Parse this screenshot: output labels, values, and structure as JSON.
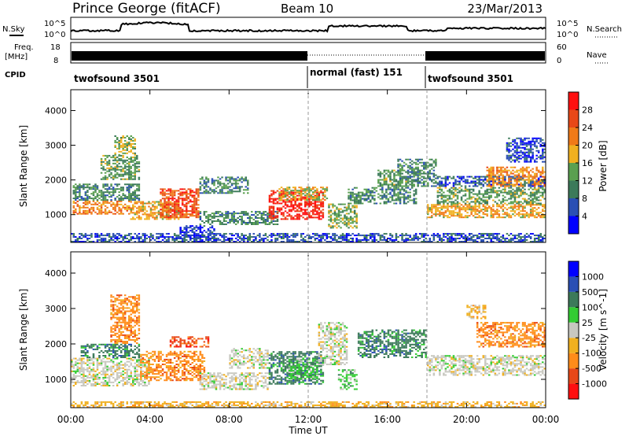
{
  "header": {
    "station": "Prince George (fitACF)",
    "beam": "Beam 10",
    "date": "23/Mar/2013"
  },
  "top_panels": {
    "nsky_label": "N.Sky",
    "nsearch_label": "N.Search",
    "nsky_ticks": [
      "10^5",
      "10^0"
    ],
    "nsearch_ticks": [
      "10^5",
      "10^0"
    ],
    "freq_label_line1": "Freq.",
    "freq_label_line2": "[MHz]",
    "freq_ticks": [
      "18",
      "8"
    ],
    "nave_label": "Nave",
    "nave_ticks": [
      "60",
      "0"
    ],
    "cpid_label": "CPID",
    "cpid_segments": [
      {
        "label": "twofsound 3501",
        "start_hour": 0
      },
      {
        "label": "normal (fast) 151",
        "start_hour": 12
      },
      {
        "label": "twofsound 3501",
        "start_hour": 18
      }
    ]
  },
  "colors": {
    "power": [
      "#0000ff",
      "#2a4fb4",
      "#3c7a5a",
      "#5aa050",
      "#f0b020",
      "#f07a18",
      "#e84818",
      "#ff1010"
    ],
    "velocity": [
      "#ff1010",
      "#e84818",
      "#ff8c1a",
      "#f0b020",
      "#c8c8c0",
      "#33cc33",
      "#3c7a5a",
      "#2a4fb4",
      "#0000ff"
    ],
    "ground": "#c8c8c0"
  },
  "chart_data": [
    {
      "type": "heatmap",
      "name": "power",
      "ylabel": "Slant Range [km]",
      "xlim": [
        0,
        24
      ],
      "ylim": [
        200,
        4600
      ],
      "y_ticks": [
        "1000",
        "2000",
        "3000",
        "4000"
      ],
      "x_ticks": [
        "00:00",
        "04:00",
        "08:00",
        "12:00",
        "16:00",
        "20:00",
        "00:00"
      ],
      "colorbar": {
        "label": "Power [dB]",
        "ticks": [
          "4",
          "8",
          "12",
          "16",
          "20",
          "24",
          "28"
        ],
        "range": [
          0,
          30
        ]
      },
      "regions": [
        {
          "t": [
            0.1,
            3.0
          ],
          "r": [
            1000,
            1400
          ],
          "v": 20
        },
        {
          "t": [
            0.1,
            3.5
          ],
          "r": [
            1400,
            1900
          ],
          "v": 10
        },
        {
          "t": [
            1.5,
            3.5
          ],
          "r": [
            2000,
            2700
          ],
          "v": 12
        },
        {
          "t": [
            2.2,
            3.3
          ],
          "r": [
            2700,
            3300
          ],
          "v": 14
        },
        {
          "t": [
            3.0,
            5.5
          ],
          "r": [
            850,
            1400
          ],
          "v": 18
        },
        {
          "t": [
            4.5,
            6.5
          ],
          "r": [
            900,
            1750
          ],
          "v": 24
        },
        {
          "t": [
            5.5,
            7.3
          ],
          "r": [
            200,
            700
          ],
          "v": 4
        },
        {
          "t": [
            6.5,
            10.5
          ],
          "r": [
            700,
            1100
          ],
          "v": 10
        },
        {
          "t": [
            6.5,
            9.0
          ],
          "r": [
            1600,
            2100
          ],
          "v": 10
        },
        {
          "t": [
            10.0,
            12.8
          ],
          "r": [
            850,
            1700
          ],
          "v": 27
        },
        {
          "t": [
            10.5,
            13.0
          ],
          "r": [
            1400,
            1800
          ],
          "v": 16
        },
        {
          "t": [
            13.0,
            14.5
          ],
          "r": [
            600,
            1300
          ],
          "v": 14
        },
        {
          "t": [
            14.0,
            17.5
          ],
          "r": [
            1300,
            1800
          ],
          "v": 10
        },
        {
          "t": [
            15.5,
            17.5
          ],
          "r": [
            1800,
            2300
          ],
          "v": 12
        },
        {
          "t": [
            16.5,
            18.5
          ],
          "r": [
            1800,
            2600
          ],
          "v": 10
        },
        {
          "t": [
            18.0,
            24.0
          ],
          "r": [
            900,
            1300
          ],
          "v": 18
        },
        {
          "t": [
            18.5,
            24.0
          ],
          "r": [
            1300,
            1800
          ],
          "v": 12
        },
        {
          "t": [
            18.5,
            24.0
          ],
          "r": [
            1800,
            2100
          ],
          "v": 6
        },
        {
          "t": [
            21.0,
            24.0
          ],
          "r": [
            1800,
            2400
          ],
          "v": 20
        },
        {
          "t": [
            22.0,
            24.0
          ],
          "r": [
            2500,
            3200
          ],
          "v": 5
        },
        {
          "t": [
            0.0,
            24.0
          ],
          "r": [
            200,
            450
          ],
          "v": 6
        }
      ]
    },
    {
      "type": "heatmap",
      "name": "velocity",
      "ylabel": "Slant Range [km]",
      "xlabel": "Time UT",
      "xlim": [
        0,
        24
      ],
      "ylim": [
        200,
        4600
      ],
      "y_ticks": [
        "1000",
        "2000",
        "3000",
        "4000"
      ],
      "x_ticks": [
        "00:00",
        "04:00",
        "08:00",
        "12:00",
        "16:00",
        "20:00",
        "00:00"
      ],
      "colorbar": {
        "label": "Velocity [m s^-1]",
        "ticks": [
          "1000",
          "500",
          "100",
          "25",
          "-25",
          "-100",
          "-500",
          "-1000"
        ]
      },
      "regions": [
        {
          "t": [
            0.0,
            4.0
          ],
          "r": [
            800,
            1600
          ],
          "c": 4
        },
        {
          "t": [
            0.5,
            3.5
          ],
          "r": [
            1600,
            2000
          ],
          "c": 6
        },
        {
          "t": [
            2.0,
            3.5
          ],
          "r": [
            2000,
            3400
          ],
          "c": 2
        },
        {
          "t": [
            3.5,
            6.8
          ],
          "r": [
            950,
            1800
          ],
          "c": 2
        },
        {
          "t": [
            5.0,
            7.0
          ],
          "r": [
            1900,
            2200
          ],
          "c": 1
        },
        {
          "t": [
            6.5,
            10.0
          ],
          "r": [
            700,
            1200
          ],
          "c": 4
        },
        {
          "t": [
            8.0,
            10.0
          ],
          "r": [
            1300,
            1900
          ],
          "c": 4
        },
        {
          "t": [
            10.0,
            12.8
          ],
          "r": [
            850,
            1800
          ],
          "c": 6
        },
        {
          "t": [
            11.0,
            12.5
          ],
          "r": [
            1000,
            1600
          ],
          "c": 5
        },
        {
          "t": [
            13.5,
            14.5
          ],
          "r": [
            700,
            1300
          ],
          "c": 5
        },
        {
          "t": [
            12.5,
            14.0
          ],
          "r": [
            1400,
            2600
          ],
          "c": 4
        },
        {
          "t": [
            14.5,
            18.0
          ],
          "r": [
            1600,
            2400
          ],
          "c": 6
        },
        {
          "t": [
            18.0,
            24.0
          ],
          "r": [
            1100,
            1700
          ],
          "c": 4
        },
        {
          "t": [
            20.5,
            24.0
          ],
          "r": [
            1900,
            2600
          ],
          "c": 2
        },
        {
          "t": [
            20.0,
            21.0
          ],
          "r": [
            2700,
            3100
          ],
          "c": 3
        },
        {
          "t": [
            0.0,
            24.0
          ],
          "r": [
            200,
            400
          ],
          "c": 3
        }
      ]
    }
  ]
}
